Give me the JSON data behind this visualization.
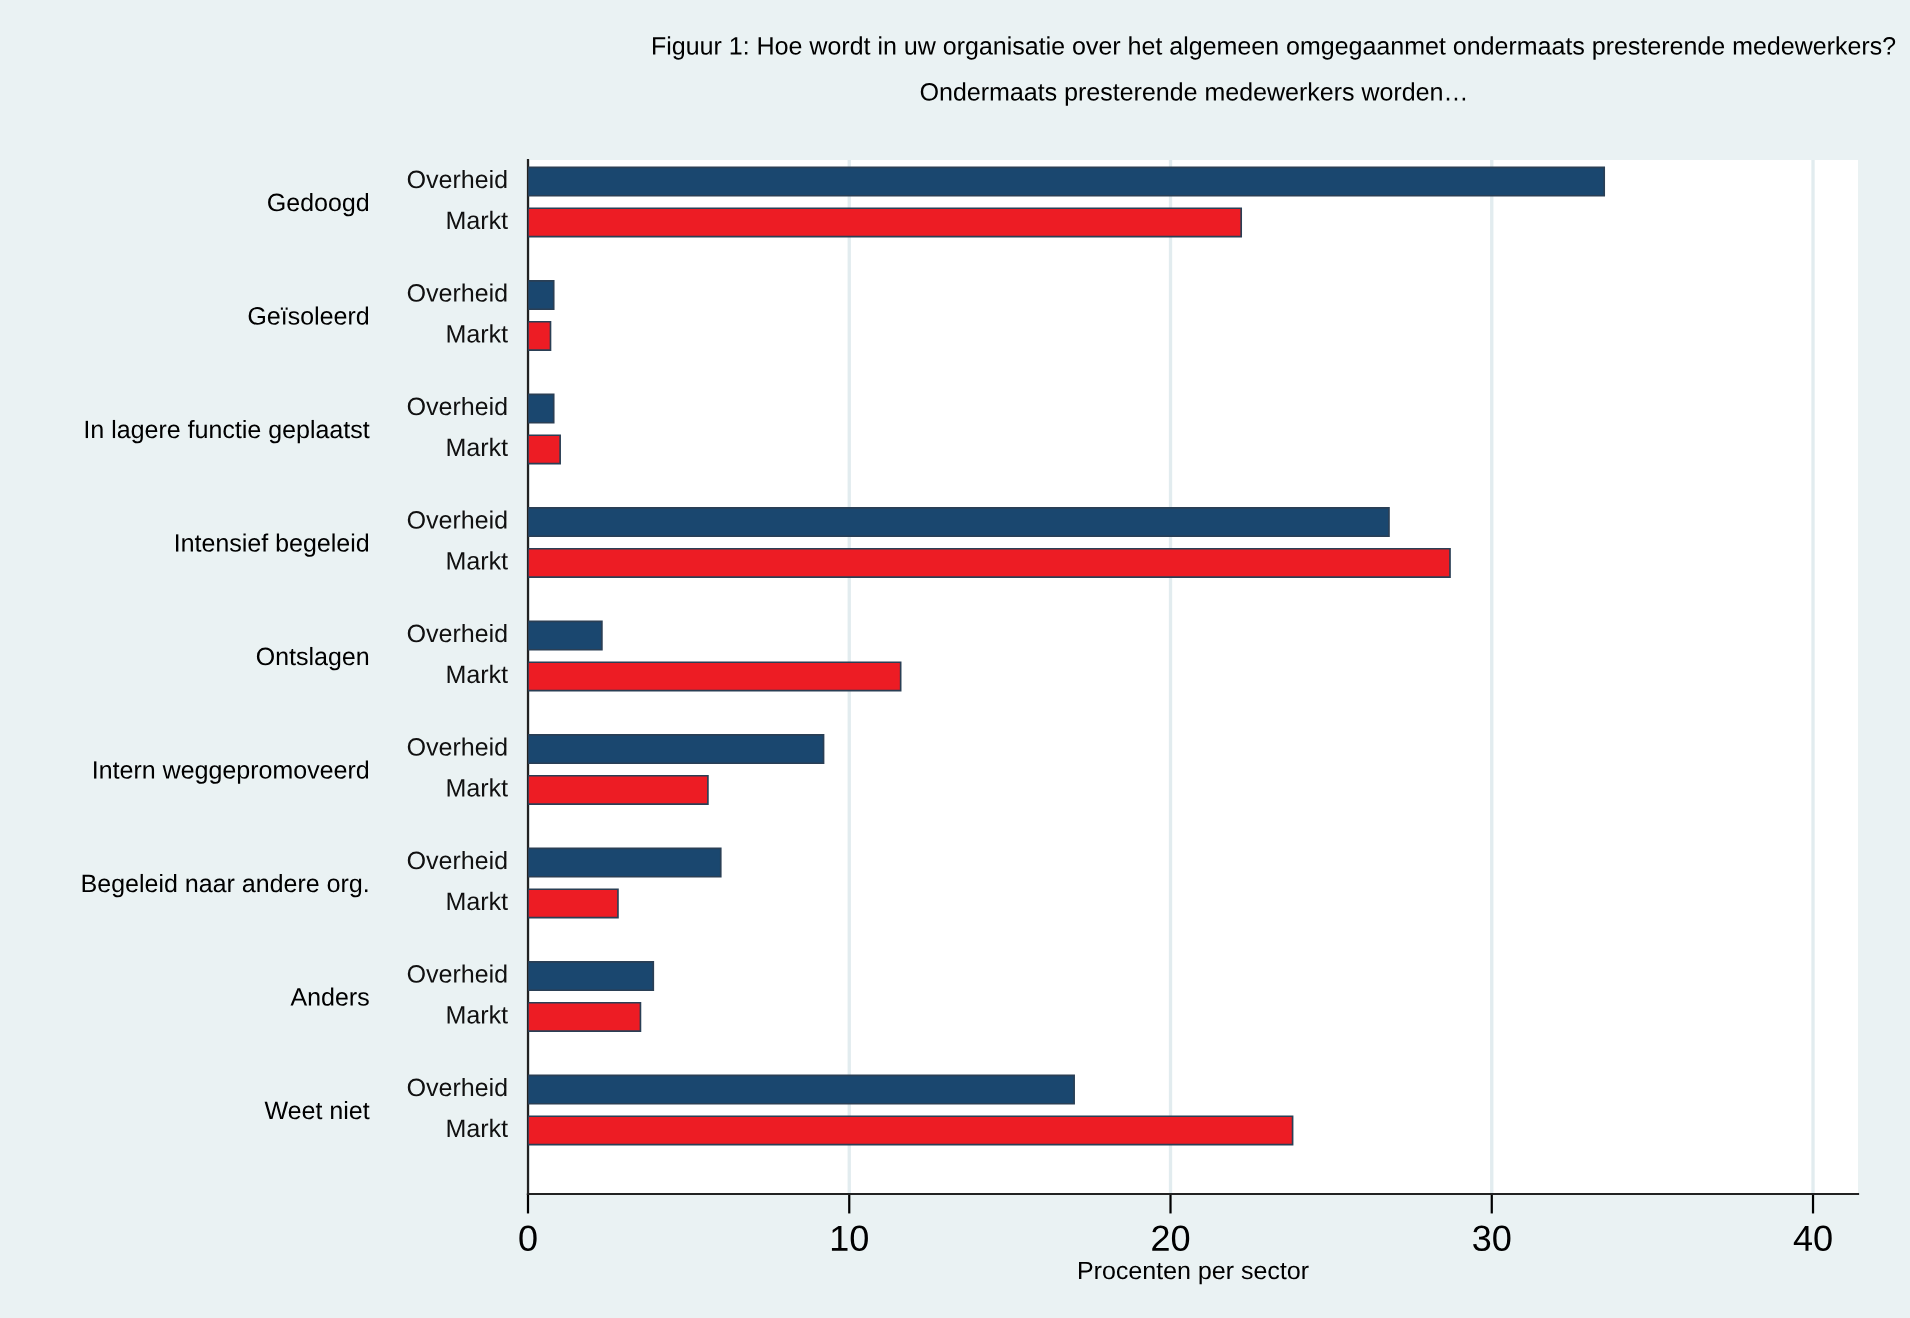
{
  "chart_data": {
    "type": "bar",
    "orientation": "horizontal",
    "title": "Figuur 1: Hoe wordt in uw organisatie over het algemeen omgegaanmet ondermaats presterende medewerkers?",
    "subtitle": "Ondermaats presterende medewerkers worden…",
    "xlabel": "Procenten per sector",
    "categories": [
      "Gedoogd",
      "Geïsoleerd",
      "In lagere functie geplaatst",
      "Intensief begeleid",
      "Ontslagen",
      "Intern weggepromoveerd",
      "Begeleid naar andere org.",
      "Anders",
      "Weet niet"
    ],
    "series": [
      {
        "name": "Overheid",
        "color": "#1a476f",
        "values": [
          33.5,
          0.8,
          0.8,
          26.8,
          2.3,
          9.2,
          6.0,
          3.9,
          17.0
        ]
      },
      {
        "name": "Markt",
        "color": "#ed1c24",
        "values": [
          22.2,
          0.7,
          1.0,
          28.7,
          11.6,
          5.6,
          2.8,
          3.5,
          23.8
        ]
      }
    ],
    "xlim": [
      0,
      41.4
    ],
    "xticks": [
      0,
      10,
      20,
      30,
      40
    ],
    "grid": "x"
  }
}
